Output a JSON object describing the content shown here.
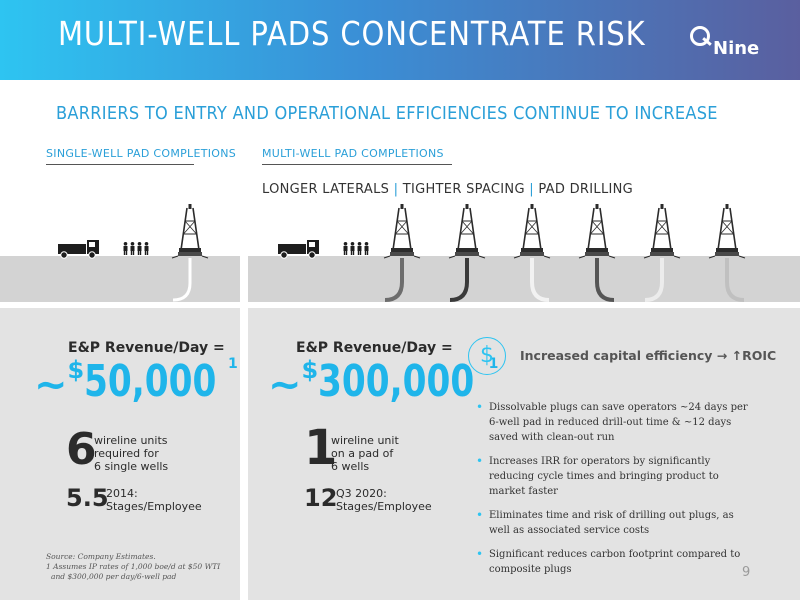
{
  "header": {
    "title": "MULTI-WELL PADS CONCENTRATE RISK",
    "logo_text": "Nine"
  },
  "subtitle": "BARRIERS TO ENTRY AND OPERATIONAL EFFICIENCIES CONTINUE TO INCREASE",
  "single": {
    "heading": "SINGLE-WELL PAD COMPLETIONS",
    "revenue_label": "E&P Revenue/Day =",
    "revenue_prefix": "~",
    "revenue_currency": "$",
    "revenue_value": "50,000",
    "revenue_footnote": "1",
    "stat1_num": "6",
    "stat1_text": [
      "wireline units",
      "required for",
      "6 single wells"
    ],
    "stat2_num": "5.5",
    "stat2_text": [
      "2014:",
      "Stages/Employee"
    ]
  },
  "multi": {
    "heading": "MULTI-WELL PAD COMPLETIONS",
    "tagline": [
      "LONGER LATERALS",
      "TIGHTER SPACING",
      "PAD DRILLING"
    ],
    "tagline_sep": "|",
    "revenue_label": "E&P Revenue/Day =",
    "revenue_prefix": "~",
    "revenue_currency": "$",
    "revenue_value": "300,000",
    "revenue_footnote": "1",
    "stat1_num": "1",
    "stat1_text": [
      "wireline unit",
      "on a pad of",
      "6 wells"
    ],
    "stat2_num": "12",
    "stat2_text": [
      "Q3 2020:",
      "Stages/Employee"
    ]
  },
  "efficiency": {
    "icon_glyph": "$",
    "headline": "Increased capital efficiency → ↑ROIC",
    "bullets": [
      "Dissolvable plugs can save operators ~24 days per 6-well pad in reduced drill-out time & ~12 days saved with clean-out run",
      "Increases IRR for operators by significantly reducing cycle times and bringing product to market faster",
      "Eliminates time and risk of drilling out plugs, as well as associated service costs",
      "Significant reduces carbon footprint compared to composite plugs"
    ]
  },
  "source": {
    "line1": "Source: Company Estimates.",
    "line2": "1 Assumes IP rates of 1,000 boe/d at $50 WTI",
    "line3": "and $300,000 per day/6-well pad"
  },
  "page_number": "9",
  "colors": {
    "accent": "#2ec4f1",
    "header_start": "#2ec4f1",
    "header_end": "#5a5f9f",
    "panel": "#e3e3e3",
    "ground": "#d3d3d3"
  }
}
